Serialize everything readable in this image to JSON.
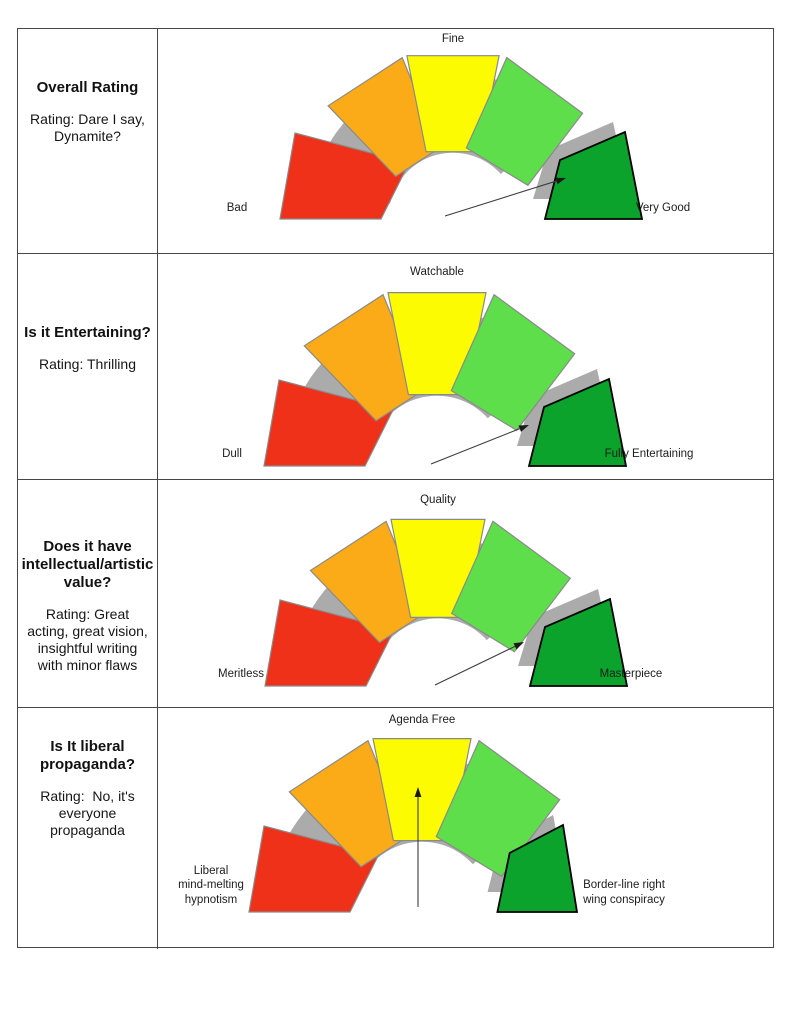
{
  "colors": {
    "red": "#ee3118",
    "orange": "#fbab18",
    "yellow": "#fdfb02",
    "light_green": "#5ede4b",
    "green": "#0ba32b",
    "ring_gray": "#ababab",
    "needle": "#3d3d3d",
    "table_border": "#474747"
  },
  "rows": [
    {
      "title": "Overall Rating",
      "rating": "Rating: Dare I say,\nDynamite?"
    },
    {
      "title": "Is it Entertaining?",
      "rating": "Rating: Thrilling"
    },
    {
      "title": "Does it have\nintellectual/artistic\nvalue?",
      "rating": "Rating: Great\nacting, great vision,\ninsightful writing\nwith minor flaws"
    },
    {
      "title": "Is It liberal\npropaganda?",
      "rating": "Rating:  No, it's\neveryone\npropaganda"
    }
  ],
  "chart_data": [
    {
      "type": "gauge",
      "question": "Overall Rating",
      "rating": "Dare I say, Dynamite?",
      "top_label": "Fine",
      "left_label": "Bad",
      "right_label": "Very Good",
      "segment_colors": [
        "#ee3118",
        "#fbab18",
        "#fdfb02",
        "#5ede4b",
        "#0ba32b"
      ],
      "needle": {
        "angle_deg": 71,
        "value_fraction": 0.89,
        "tail": [
          -8,
          1
        ],
        "tip": [
          113,
          39
        ]
      }
    },
    {
      "type": "gauge",
      "question": "Is it Entertaining?",
      "rating": "Thrilling",
      "top_label": "Watchable",
      "left_label": "Dull",
      "right_label": "Fully Entertaining",
      "segment_colors": [
        "#ee3118",
        "#fbab18",
        "#fdfb02",
        "#5ede4b",
        "#0ba32b"
      ],
      "needle": {
        "angle_deg": 67,
        "value_fraction": 0.87,
        "tail": [
          -6,
          0
        ],
        "tip": [
          92,
          39
        ]
      }
    },
    {
      "type": "gauge",
      "question": "Does it have intellectual/artistic value?",
      "rating": "Great acting, great vision, insightful writing with minor flaws",
      "top_label": "Quality",
      "left_label": "Meritless",
      "right_label": "Masterpiece",
      "segment_colors": [
        "#ee3118",
        "#fbab18",
        "#fdfb02",
        "#5ede4b",
        "#0ba32b"
      ],
      "needle": {
        "angle_deg": 64,
        "value_fraction": 0.86,
        "tail": [
          -3,
          -1
        ],
        "tip": [
          86,
          42
        ]
      }
    },
    {
      "type": "gauge",
      "question": "Is It liberal propaganda?",
      "rating": "No, it's everyone propaganda",
      "top_label": "Agenda Free",
      "left_label": "Liberal\nmind-melting\nhypnotism",
      "right_label": "Border-line right\nwing conspiracy",
      "segment_colors": [
        "#ee3118",
        "#fbab18",
        "#fdfb02",
        "#5ede4b",
        "#0ba32b"
      ],
      "needle": {
        "angle_deg": -2,
        "value_fraction": 0.49,
        "tail": [
          -4,
          3
        ],
        "tip": [
          -4,
          123
        ]
      }
    }
  ]
}
